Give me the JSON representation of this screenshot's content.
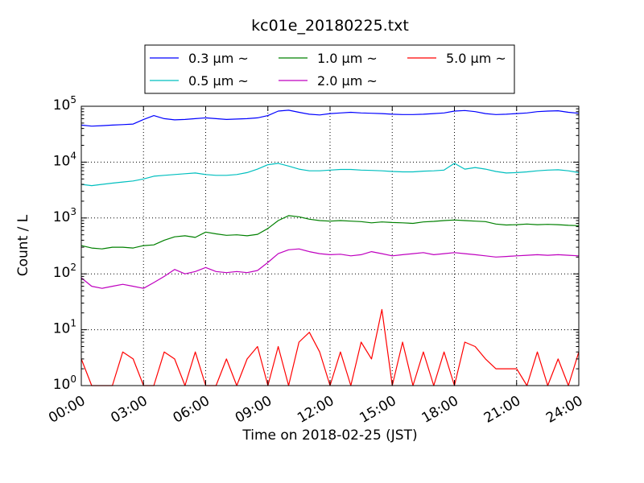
{
  "chart_data": {
    "type": "line",
    "title": "kc01e_20180225.txt",
    "xlabel": "Time on 2018-02-25 (JST)",
    "ylabel": "Count / L",
    "yscale": "log",
    "ylim": [
      1,
      100000
    ],
    "xlim": [
      "00:00",
      "24:00"
    ],
    "x_ticks": [
      "00:00",
      "03:00",
      "06:00",
      "09:00",
      "12:00",
      "15:00",
      "18:00",
      "21:00",
      "24:00"
    ],
    "y_ticks": [
      {
        "base": "10",
        "exp": "0",
        "value": 1
      },
      {
        "base": "10",
        "exp": "1",
        "value": 10
      },
      {
        "base": "10",
        "exp": "2",
        "value": 100
      },
      {
        "base": "10",
        "exp": "3",
        "value": 1000
      },
      {
        "base": "10",
        "exp": "4",
        "value": 10000
      },
      {
        "base": "10",
        "exp": "5",
        "value": 100000
      }
    ],
    "grid": true,
    "legend_position": "top-center",
    "x": [
      "00:00",
      "00:30",
      "01:00",
      "01:30",
      "02:00",
      "02:30",
      "03:00",
      "03:30",
      "04:00",
      "04:30",
      "05:00",
      "05:30",
      "06:00",
      "06:30",
      "07:00",
      "07:30",
      "08:00",
      "08:30",
      "09:00",
      "09:30",
      "10:00",
      "10:30",
      "11:00",
      "11:30",
      "12:00",
      "12:30",
      "13:00",
      "13:30",
      "14:00",
      "14:30",
      "15:00",
      "15:30",
      "16:00",
      "16:30",
      "17:00",
      "17:30",
      "18:00",
      "18:30",
      "19:00",
      "19:30",
      "20:00",
      "20:30",
      "21:00",
      "21:30",
      "22:00",
      "22:30",
      "23:00",
      "23:30",
      "24:00"
    ],
    "series": [
      {
        "name": "0.3 μm ~",
        "color": "#0000ff",
        "values": [
          46000,
          44000,
          45000,
          46000,
          47000,
          48000,
          58000,
          68000,
          60000,
          57000,
          58000,
          60000,
          62000,
          60000,
          58000,
          59000,
          60000,
          62000,
          68000,
          82000,
          85000,
          78000,
          72000,
          70000,
          74000,
          76000,
          78000,
          76000,
          75000,
          74000,
          72000,
          71000,
          71000,
          72000,
          74000,
          76000,
          82000,
          84000,
          80000,
          74000,
          71000,
          72000,
          74000,
          76000,
          80000,
          82000,
          83000,
          78000,
          75000
        ]
      },
      {
        "name": "0.5 μm ~",
        "color": "#00bfbf",
        "values": [
          4000,
          3800,
          4000,
          4200,
          4400,
          4600,
          5000,
          5600,
          5800,
          6000,
          6200,
          6400,
          6000,
          5800,
          5800,
          6000,
          6500,
          7500,
          9000,
          9500,
          8500,
          7500,
          7000,
          7000,
          7200,
          7400,
          7400,
          7200,
          7100,
          7000,
          6800,
          6700,
          6700,
          6900,
          7000,
          7200,
          9500,
          7500,
          8000,
          7500,
          6800,
          6400,
          6500,
          6700,
          7000,
          7200,
          7300,
          7000,
          6500
        ]
      },
      {
        "name": "1.0 μm ~",
        "color": "#008000",
        "values": [
          320,
          290,
          280,
          300,
          300,
          290,
          320,
          330,
          400,
          460,
          480,
          450,
          560,
          520,
          490,
          500,
          480,
          510,
          650,
          900,
          1100,
          1050,
          950,
          900,
          880,
          900,
          880,
          860,
          820,
          850,
          830,
          820,
          800,
          850,
          870,
          900,
          920,
          900,
          880,
          860,
          780,
          750,
          760,
          780,
          760,
          770,
          760,
          740,
          730
        ]
      },
      {
        "name": "2.0 μm ~",
        "color": "#bf00bf",
        "values": [
          85,
          60,
          55,
          60,
          65,
          60,
          55,
          70,
          90,
          120,
          100,
          110,
          130,
          110,
          105,
          110,
          105,
          115,
          160,
          230,
          270,
          280,
          250,
          230,
          220,
          225,
          210,
          220,
          250,
          230,
          210,
          220,
          230,
          240,
          220,
          230,
          240,
          230,
          220,
          210,
          200,
          205,
          210,
          215,
          220,
          215,
          220,
          215,
          210
        ]
      },
      {
        "name": "5.0 μm ~",
        "color": "#ff0000",
        "values": [
          3,
          1,
          1,
          1,
          4,
          3,
          1,
          1,
          4,
          3,
          1,
          4,
          1,
          1,
          3,
          1,
          3,
          5,
          1,
          5,
          1,
          6,
          9,
          4,
          1,
          4,
          1,
          6,
          3,
          23,
          1,
          6,
          1,
          4,
          1,
          4,
          1,
          6,
          5,
          3,
          2,
          2,
          2,
          1,
          4,
          1,
          3,
          1,
          4
        ]
      }
    ]
  }
}
